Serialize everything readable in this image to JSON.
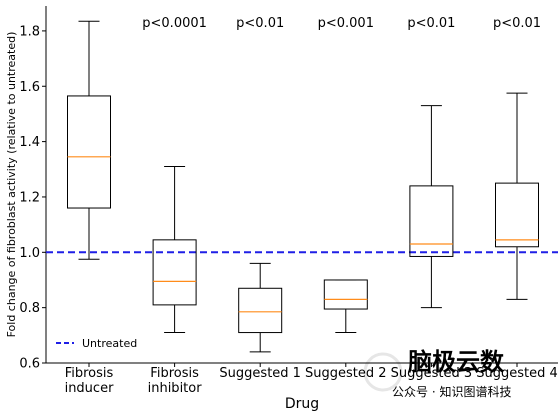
{
  "chart_data": {
    "type": "box",
    "xlabel": "Drug",
    "ylabel": "Fold change of fibroblast activity (relative to untreated)",
    "ylim": [
      0.6,
      1.89
    ],
    "yticks": [
      0.6,
      0.8,
      1.0,
      1.2,
      1.4,
      1.6,
      1.8
    ],
    "ytick_labels": [
      "0.6",
      "0.8",
      "1.0",
      "1.2",
      "1.4",
      "1.6",
      "1.8"
    ],
    "categories": [
      [
        "Fibrosis",
        "inducer"
      ],
      [
        "Fibrosis",
        "inhibitor"
      ],
      [
        "Suggested 1"
      ],
      [
        "Suggested 2"
      ],
      [
        "Suggested 3"
      ],
      [
        "Suggested 4"
      ]
    ],
    "boxes": [
      {
        "whisker_low": 0.975,
        "q1": 1.16,
        "median": 1.345,
        "q3": 1.565,
        "whisker_high": 1.835,
        "annotation": ""
      },
      {
        "whisker_low": 0.71,
        "q1": 0.81,
        "median": 0.895,
        "q3": 1.045,
        "whisker_high": 1.31,
        "annotation": "p<0.0001"
      },
      {
        "whisker_low": 0.64,
        "q1": 0.71,
        "median": 0.785,
        "q3": 0.87,
        "whisker_high": 0.96,
        "annotation": "p<0.01"
      },
      {
        "whisker_low": 0.71,
        "q1": 0.795,
        "median": 0.83,
        "q3": 0.9,
        "whisker_high": 0.9,
        "annotation": "p<0.001"
      },
      {
        "whisker_low": 0.8,
        "q1": 0.985,
        "median": 1.03,
        "q3": 1.24,
        "whisker_high": 1.53,
        "annotation": "p<0.01"
      },
      {
        "whisker_low": 0.83,
        "q1": 1.02,
        "median": 1.045,
        "q3": 1.25,
        "whisker_high": 1.575,
        "annotation": "p<0.01"
      }
    ],
    "reference_line": {
      "value": 1.0,
      "label": "Untreated",
      "color": "#1f1fe6",
      "style": "dashed"
    },
    "legend": {
      "placement": "lower-left"
    },
    "colors": {
      "median": "#ff8c1a",
      "box": "#000000"
    },
    "grid": false
  },
  "watermark": {
    "logo_text": "脑极云数",
    "caption": "公众号 · 知识图谱科技"
  }
}
